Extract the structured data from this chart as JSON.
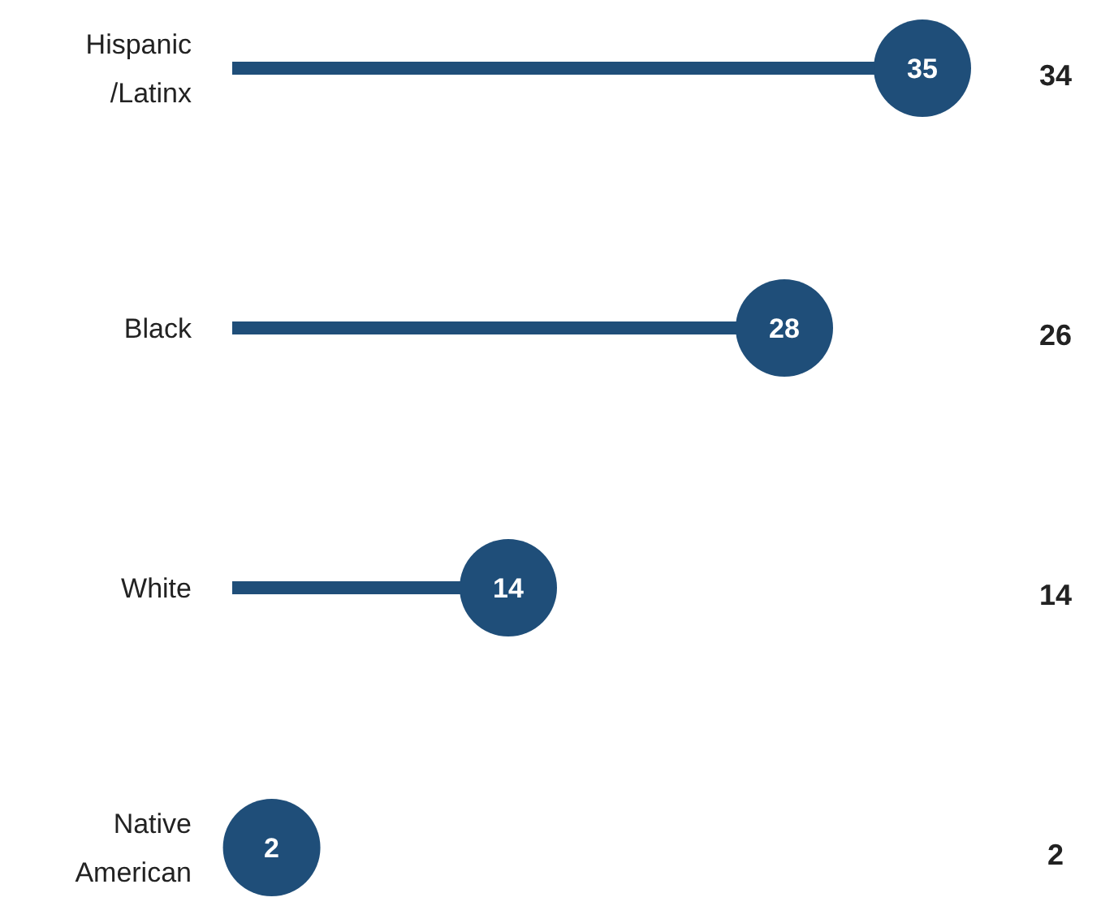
{
  "chart_data": {
    "type": "lollipop",
    "orientation": "horizontal",
    "categories": [
      "Hispanic\n/Latinx",
      "Black",
      "White",
      "Native\nAmerican"
    ],
    "values": [
      35,
      28,
      14,
      2
    ],
    "color": "#1f4e79",
    "xlim": [
      0,
      35
    ],
    "tick_labels": false,
    "data_labels": true,
    "annotations": [
      "34",
      "26",
      "14",
      "2"
    ]
  }
}
